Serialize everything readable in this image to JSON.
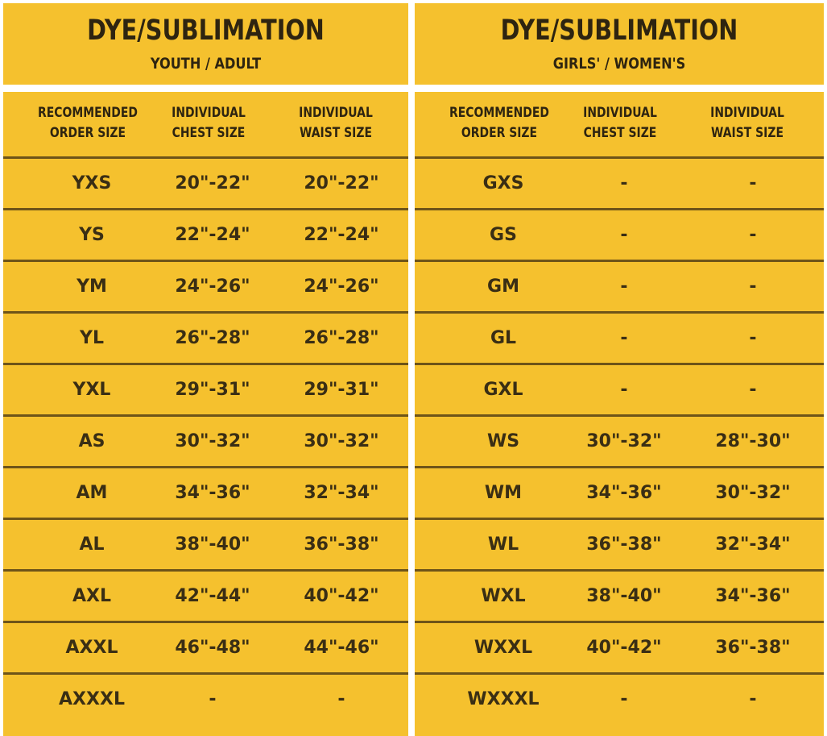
{
  "youth_adult": {
    "title": "DYE/SUBLIMATION",
    "subtitle": "YOUTH / ADULT",
    "headers": [
      "RECOMMENDED\nORDER SIZE",
      "INDIVIDUAL\nCHEST SIZE",
      "INDIVIDUAL\nWAIST SIZE"
    ],
    "rows": [
      [
        "YXS",
        "20\"-22\"",
        "20\"-22\""
      ],
      [
        "YS",
        "22\"-24\"",
        "22\"-24\""
      ],
      [
        "YM",
        "24\"-26\"",
        "24\"-26\""
      ],
      [
        "YL",
        "26\"-28\"",
        "26\"-28\""
      ],
      [
        "YXL",
        "29\"-31\"",
        "29\"-31\""
      ],
      [
        "AS",
        "30\"-32\"",
        "30\"-32\""
      ],
      [
        "AM",
        "34\"-36\"",
        "32\"-34\""
      ],
      [
        "AL",
        "38\"-40\"",
        "36\"-38\""
      ],
      [
        "AXL",
        "42\"-44\"",
        "40\"-42\""
      ],
      [
        "AXXL",
        "46\"-48\"",
        "44\"-46\""
      ],
      [
        "AXXXL",
        "-",
        "-"
      ]
    ]
  },
  "girls_women": {
    "title": "DYE/SUBLIMATION",
    "subtitle": "GIRLS' / WOMEN'S",
    "headers": [
      "RECOMMENDED\nORDER SIZE",
      "INDIVIDUAL\nCHEST SIZE",
      "INDIVIDUAL\nWAIST SIZE"
    ],
    "rows": [
      [
        "GXS",
        "-",
        "-"
      ],
      [
        "GS",
        "-",
        "-"
      ],
      [
        "GM",
        "-",
        "-"
      ],
      [
        "GL",
        "-",
        "-"
      ],
      [
        "GXL",
        "-",
        "-"
      ],
      [
        "WS",
        "30\"-32\"",
        "28\"-30\""
      ],
      [
        "WM",
        "34\"-36\"",
        "30\"-32\""
      ],
      [
        "WL",
        "36\"-38\"",
        "32\"-34\""
      ],
      [
        "WXL",
        "38\"-40\"",
        "34\"-36\""
      ],
      [
        "WXXL",
        "40\"-42\"",
        "36\"-38\""
      ],
      [
        "WXXXL",
        "-",
        "-"
      ]
    ]
  },
  "colors": {
    "panel": "#f5c12e",
    "separator": "#6e5418",
    "text": "#3a2e14"
  }
}
